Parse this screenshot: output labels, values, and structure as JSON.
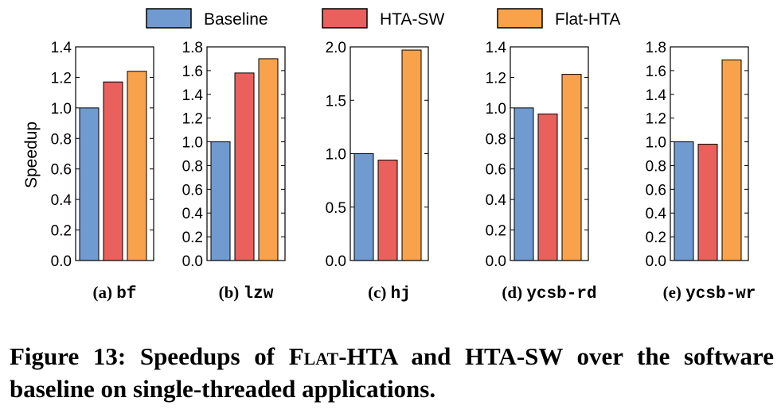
{
  "legend": [
    {
      "label": "Baseline",
      "color": "#6f9bd1"
    },
    {
      "label": "HTA-SW",
      "color": "#e9605d"
    },
    {
      "label": "Flat-HTA",
      "color": "#f9a24c"
    }
  ],
  "ylabel": "Speedup",
  "chart_data": [
    {
      "type": "bar",
      "prefix": "(a)",
      "name": "bf",
      "categories": [
        "Baseline",
        "HTA-SW",
        "Flat-HTA"
      ],
      "values": [
        1.0,
        1.17,
        1.24
      ],
      "ylim": [
        0,
        1.4
      ],
      "ticks": [
        "0.0",
        "0.2",
        "0.4",
        "0.6",
        "0.8",
        "1.0",
        "1.2",
        "1.4"
      ]
    },
    {
      "type": "bar",
      "prefix": "(b)",
      "name": "lzw",
      "categories": [
        "Baseline",
        "HTA-SW",
        "Flat-HTA"
      ],
      "values": [
        1.0,
        1.58,
        1.7
      ],
      "ylim": [
        0,
        1.8
      ],
      "ticks": [
        "0.0",
        "0.2",
        "0.4",
        "0.6",
        "0.8",
        "1.0",
        "1.2",
        "1.4",
        "1.6",
        "1.8"
      ]
    },
    {
      "type": "bar",
      "prefix": "(c)",
      "name": "hj",
      "categories": [
        "Baseline",
        "HTA-SW",
        "Flat-HTA"
      ],
      "values": [
        1.0,
        0.94,
        1.97
      ],
      "ylim": [
        0,
        2.0
      ],
      "ticks": [
        "0.0",
        "0.5",
        "1.0",
        "1.5",
        "2.0"
      ]
    },
    {
      "type": "bar",
      "prefix": "(d)",
      "name": "ycsb-rd",
      "categories": [
        "Baseline",
        "HTA-SW",
        "Flat-HTA"
      ],
      "values": [
        1.0,
        0.96,
        1.22
      ],
      "ylim": [
        0,
        1.4
      ],
      "ticks": [
        "0.0",
        "0.2",
        "0.4",
        "0.6",
        "0.8",
        "1.0",
        "1.2",
        "1.4"
      ]
    },
    {
      "type": "bar",
      "prefix": "(e)",
      "name": "ycsb-wr",
      "categories": [
        "Baseline",
        "HTA-SW",
        "Flat-HTA"
      ],
      "values": [
        1.0,
        0.98,
        1.69
      ],
      "ylim": [
        0,
        1.8
      ],
      "ticks": [
        "0.0",
        "0.2",
        "0.4",
        "0.6",
        "0.8",
        "1.0",
        "1.2",
        "1.4",
        "1.6",
        "1.8"
      ]
    }
  ],
  "caption": {
    "label": "Figure 13:",
    "text_before": "Speedups of",
    "flat_word": "Flat",
    "text_after": "-HTA and HTA-SW over the software baseline on single-threaded applications."
  }
}
